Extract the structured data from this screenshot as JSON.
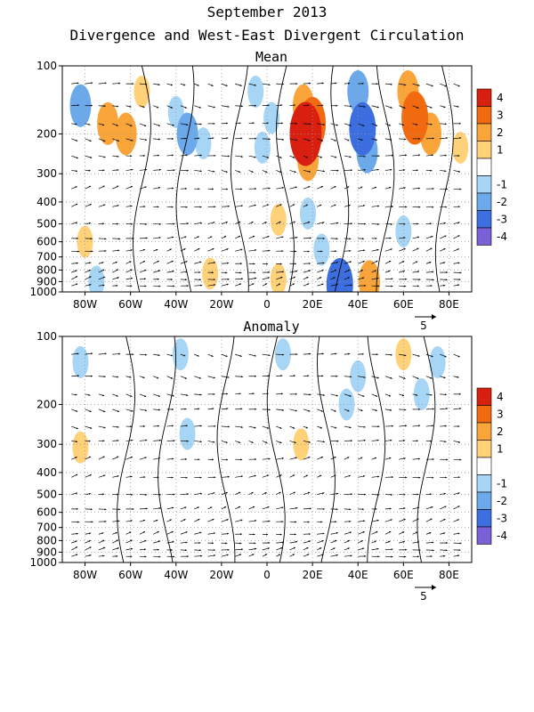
{
  "title_line1": "September 2013",
  "title_line2": "Divergence and West-East Divergent Circulation",
  "chart_data": [
    {
      "type": "heatmap",
      "title": "Mean",
      "x_ticks": [
        "80W",
        "60W",
        "40W",
        "20W",
        "0",
        "20E",
        "40E",
        "60E",
        "80E"
      ],
      "x_values": [
        -80,
        -60,
        -40,
        -20,
        0,
        20,
        40,
        60,
        80
      ],
      "xlim": [
        -90,
        90
      ],
      "y_ticks": [
        "100",
        "200",
        "300",
        "400",
        "500",
        "600",
        "700",
        "800",
        "900",
        "1000"
      ],
      "y_values": [
        100,
        200,
        300,
        400,
        500,
        600,
        700,
        800,
        900,
        1000
      ],
      "y_scale": "log",
      "ylim": [
        1000,
        100
      ],
      "colorbar": {
        "labels": [
          "4",
          "3",
          "2",
          "1",
          "-1",
          "-2",
          "-3",
          "-4"
        ],
        "colors": [
          "#d91f10",
          "#f26a10",
          "#f9a53a",
          "#ffd27a",
          "#ffffff",
          "#a6d5f5",
          "#6ca9ea",
          "#3c6ee0",
          "#7c60d6"
        ]
      },
      "vector_scale_label": "5",
      "regions": [
        {
          "x": -82,
          "p": 150,
          "v": -2
        },
        {
          "x": -70,
          "p": 180,
          "v": 2
        },
        {
          "x": -62,
          "p": 200,
          "v": 2
        },
        {
          "x": -55,
          "p": 130,
          "v": 1
        },
        {
          "x": -40,
          "p": 160,
          "v": -1
        },
        {
          "x": -35,
          "p": 200,
          "v": -2
        },
        {
          "x": -28,
          "p": 220,
          "v": -1
        },
        {
          "x": -5,
          "p": 130,
          "v": -1
        },
        {
          "x": 2,
          "p": 170,
          "v": -1
        },
        {
          "x": -2,
          "p": 230,
          "v": -1
        },
        {
          "x": 16,
          "p": 150,
          "v": 2
        },
        {
          "x": 17,
          "p": 200,
          "v": 4
        },
        {
          "x": 20,
          "p": 180,
          "v": 3
        },
        {
          "x": 18,
          "p": 260,
          "v": 2
        },
        {
          "x": 40,
          "p": 130,
          "v": -2
        },
        {
          "x": 42,
          "p": 190,
          "v": -3
        },
        {
          "x": 44,
          "p": 240,
          "v": -2
        },
        {
          "x": 62,
          "p": 130,
          "v": 2
        },
        {
          "x": 65,
          "p": 170,
          "v": 3
        },
        {
          "x": 72,
          "p": 200,
          "v": 2
        },
        {
          "x": 85,
          "p": 230,
          "v": 1
        },
        {
          "x": 18,
          "p": 450,
          "v": -1
        },
        {
          "x": 24,
          "p": 650,
          "v": -1
        },
        {
          "x": 60,
          "p": 540,
          "v": -1
        },
        {
          "x": -80,
          "p": 600,
          "v": 1
        },
        {
          "x": 5,
          "p": 480,
          "v": 1
        },
        {
          "x": -25,
          "p": 830,
          "v": 1
        },
        {
          "x": 5,
          "p": 880,
          "v": 1
        },
        {
          "x": 32,
          "p": 930,
          "v": -3
        },
        {
          "x": -75,
          "p": 900,
          "v": -1
        },
        {
          "x": 45,
          "p": 900,
          "v": 2
        }
      ]
    },
    {
      "type": "heatmap",
      "title": "Anomaly",
      "x_ticks": [
        "80W",
        "60W",
        "40W",
        "20W",
        "0",
        "20E",
        "40E",
        "60E",
        "80E"
      ],
      "x_values": [
        -80,
        -60,
        -40,
        -20,
        0,
        20,
        40,
        60,
        80
      ],
      "xlim": [
        -90,
        90
      ],
      "y_ticks": [
        "100",
        "200",
        "300",
        "400",
        "500",
        "600",
        "700",
        "800",
        "900",
        "1000"
      ],
      "y_values": [
        100,
        200,
        300,
        400,
        500,
        600,
        700,
        800,
        900,
        1000
      ],
      "y_scale": "log",
      "ylim": [
        1000,
        100
      ],
      "colorbar": {
        "labels": [
          "4",
          "3",
          "2",
          "1",
          "-1",
          "-2",
          "-3",
          "-4"
        ],
        "colors": [
          "#d91f10",
          "#f26a10",
          "#f9a53a",
          "#ffd27a",
          "#ffffff",
          "#a6d5f5",
          "#6ca9ea",
          "#3c6ee0",
          "#7c60d6"
        ]
      },
      "vector_scale_label": "5",
      "regions": [
        {
          "x": -82,
          "p": 130,
          "v": -1
        },
        {
          "x": -38,
          "p": 120,
          "v": -1
        },
        {
          "x": -82,
          "p": 310,
          "v": 1
        },
        {
          "x": -35,
          "p": 270,
          "v": -1
        },
        {
          "x": 7,
          "p": 120,
          "v": -1
        },
        {
          "x": 15,
          "p": 300,
          "v": 1
        },
        {
          "x": 35,
          "p": 200,
          "v": -1
        },
        {
          "x": 40,
          "p": 150,
          "v": -1
        },
        {
          "x": 60,
          "p": 120,
          "v": 1
        },
        {
          "x": 68,
          "p": 180,
          "v": -1
        },
        {
          "x": 75,
          "p": 130,
          "v": -1
        }
      ]
    }
  ]
}
